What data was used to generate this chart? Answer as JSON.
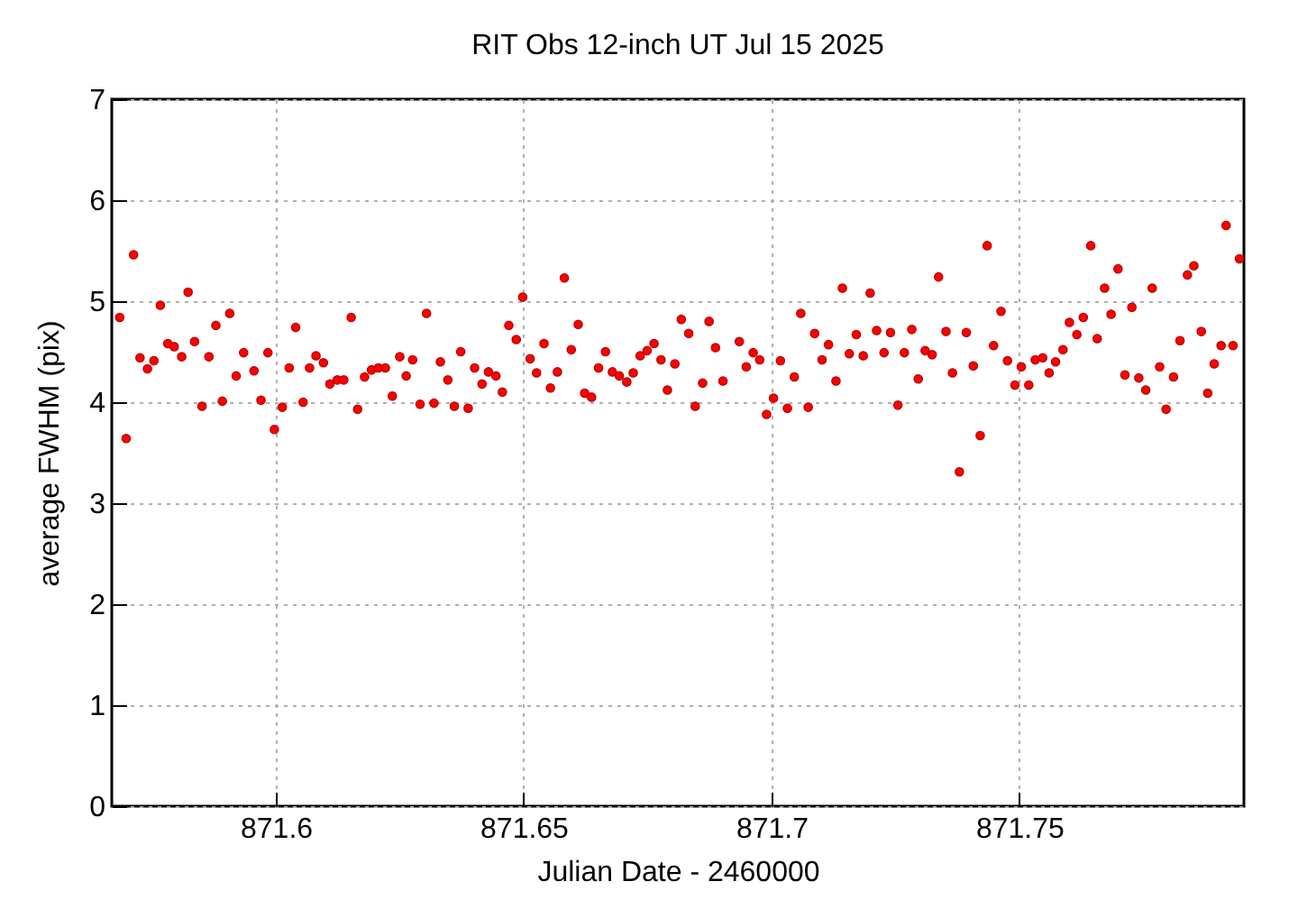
{
  "chart_data": {
    "type": "scatter",
    "title": "RIT Obs 12-inch UT Jul 15 2025",
    "xlabel": "Julian Date - 2460000",
    "ylabel": "average FWHM (pix)",
    "xlim": [
      871.5669,
      871.7953
    ],
    "xticks": [
      871.6,
      871.65,
      871.7,
      871.75
    ],
    "ylim": [
      0,
      7
    ],
    "yticks": [
      0,
      1,
      2,
      3,
      4,
      5,
      6,
      7
    ],
    "grid": true,
    "marker": "circle",
    "series": [
      {
        "color": "#ff0000",
        "x": [
          871.5685,
          871.5698,
          871.5713,
          871.5726,
          871.5741,
          871.5754,
          871.5767,
          871.5782,
          871.5795,
          871.581,
          871.5823,
          871.5836,
          871.5851,
          871.5865,
          871.5879,
          871.5892,
          871.5907,
          871.592,
          871.5935,
          871.5956,
          871.597,
          871.5984,
          871.5997,
          871.6013,
          871.6027,
          871.604,
          871.6055,
          871.6068,
          871.6081,
          871.6096,
          871.6109,
          871.6124,
          871.6137,
          871.6152,
          871.6165,
          871.6179,
          871.6193,
          871.6207,
          871.6221,
          871.6235,
          871.625,
          871.6263,
          871.6276,
          871.6291,
          871.6304,
          871.6319,
          871.6332,
          871.6347,
          871.636,
          871.6373,
          871.6388,
          871.6401,
          871.6416,
          871.6429,
          871.6444,
          871.6457,
          871.647,
          871.6485,
          871.6498,
          871.6513,
          871.6526,
          871.6541,
          871.6554,
          871.6568,
          871.6582,
          871.6596,
          871.661,
          871.6623,
          871.6637,
          871.6651,
          871.6665,
          871.6679,
          871.6693,
          871.6708,
          871.6721,
          871.6735,
          871.6749,
          871.6763,
          871.6777,
          871.679,
          871.6805,
          871.6818,
          871.6833,
          871.6846,
          871.6861,
          871.6874,
          871.6887,
          871.6902,
          871.6935,
          871.6949,
          871.6963,
          871.6976,
          871.699,
          871.7004,
          871.7018,
          871.7032,
          871.7046,
          871.7059,
          871.7074,
          871.7087,
          871.7102,
          871.7115,
          871.713,
          871.7143,
          871.7157,
          871.7171,
          871.7185,
          871.7199,
          871.7212,
          871.7227,
          871.724,
          871.7255,
          871.7268,
          871.7283,
          871.7296,
          871.731,
          871.7324,
          871.7337,
          871.7352,
          871.7365,
          871.7379,
          871.7393,
          871.7407,
          871.7421,
          871.7435,
          871.7448,
          871.7463,
          871.7476,
          871.7491,
          871.7504,
          871.7519,
          871.7532,
          871.7547,
          871.756,
          871.7573,
          871.7588,
          871.7601,
          871.7616,
          871.7629,
          871.7644,
          871.7657,
          871.7672,
          871.7685,
          871.7699,
          871.7713,
          871.7727,
          871.7741,
          871.7755,
          871.7768,
          871.7783,
          871.7796,
          871.7811,
          871.7824,
          871.7839,
          871.7852,
          871.7867,
          871.788,
          871.7893,
          871.7907,
          871.7917,
          871.7931,
          871.7944
        ],
        "values": [
          4.84,
          3.64,
          5.46,
          4.44,
          4.33,
          4.41,
          4.96,
          4.58,
          4.55,
          4.45,
          5.09,
          4.6,
          3.96,
          4.45,
          4.76,
          4.01,
          4.88,
          4.26,
          4.49,
          4.31,
          4.02,
          4.49,
          3.73,
          3.95,
          4.34,
          4.74,
          4.0,
          4.34,
          4.46,
          4.39,
          4.18,
          4.22,
          4.22,
          4.84,
          3.93,
          4.25,
          4.32,
          4.34,
          4.34,
          4.06,
          4.45,
          4.26,
          4.42,
          3.98,
          4.88,
          3.99,
          4.4,
          4.22,
          3.96,
          4.5,
          3.94,
          4.34,
          4.18,
          4.3,
          4.26,
          4.1,
          4.76,
          4.62,
          5.04,
          4.43,
          4.29,
          4.58,
          4.14,
          4.3,
          5.23,
          4.52,
          4.77,
          4.09,
          4.05,
          4.34,
          4.5,
          4.3,
          4.26,
          4.2,
          4.29,
          4.46,
          4.51,
          4.58,
          4.42,
          4.12,
          4.38,
          4.82,
          4.68,
          3.96,
          4.19,
          4.8,
          4.54,
          4.21,
          4.6,
          4.35,
          4.49,
          4.42,
          3.88,
          4.04,
          4.41,
          3.94,
          4.25,
          4.88,
          3.95,
          4.68,
          4.42,
          4.57,
          4.21,
          5.13,
          4.48,
          4.67,
          4.46,
          5.08,
          4.71,
          4.49,
          4.69,
          3.97,
          4.49,
          4.72,
          4.23,
          4.51,
          4.47,
          5.24,
          4.7,
          4.29,
          3.31,
          4.69,
          4.36,
          3.67,
          5.55,
          4.56,
          4.9,
          4.41,
          4.17,
          4.35,
          4.17,
          4.42,
          4.44,
          4.29,
          4.4,
          4.52,
          4.79,
          4.67,
          4.84,
          5.55,
          4.63,
          5.13,
          4.87,
          5.32,
          4.27,
          4.94,
          4.24,
          4.12,
          5.13,
          4.35,
          3.93,
          4.25,
          4.61,
          5.26,
          5.35,
          4.7,
          4.09,
          4.38,
          4.56,
          5.75,
          4.56,
          5.42
        ]
      }
    ]
  }
}
